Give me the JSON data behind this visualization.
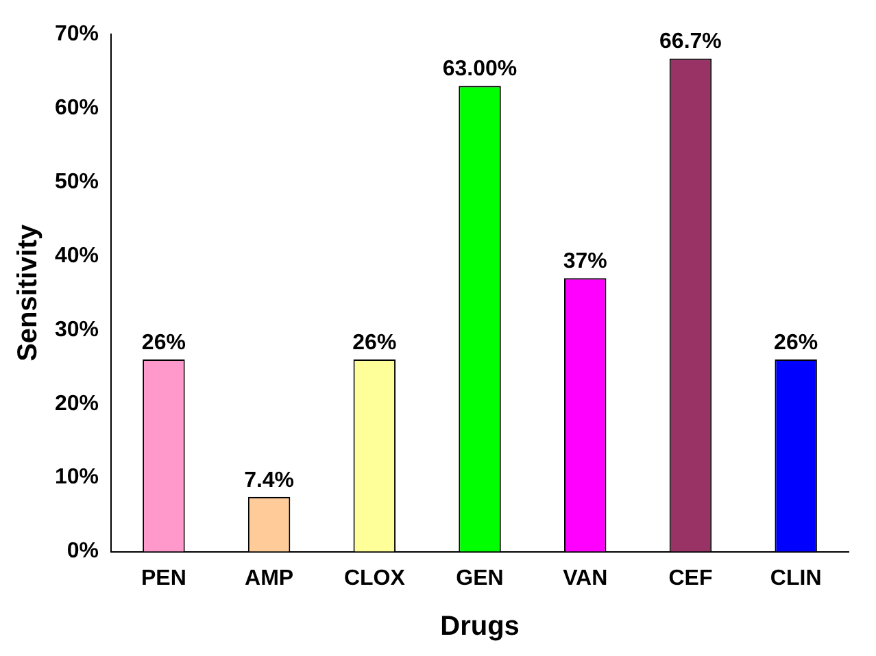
{
  "chart_data": {
    "type": "bar",
    "xlabel": "Drugs",
    "ylabel": "Sensitivity",
    "categories": [
      "PEN",
      "AMP",
      "CLOX",
      "GEN",
      "VAN",
      "CEF",
      "CLIN"
    ],
    "values": [
      26,
      7.4,
      26,
      63,
      37,
      66.7,
      26
    ],
    "colors": [
      "#ff99cc",
      "#ffcc99",
      "#ffff99",
      "#00ff00",
      "#ff00ff",
      "#993366",
      "#0000ff"
    ],
    "value_labels": [
      "26%",
      "7.4%",
      "26%",
      "63.00%",
      "37%",
      "66.7%",
      "26%"
    ],
    "ylim": [
      0,
      70
    ],
    "yticks": [
      {
        "value": 0,
        "label": "0%"
      },
      {
        "value": 10,
        "label": "10%"
      },
      {
        "value": 20,
        "label": "20%"
      },
      {
        "value": 30,
        "label": "30%"
      },
      {
        "value": 40,
        "label": "40%"
      },
      {
        "value": 50,
        "label": "50%"
      },
      {
        "value": 60,
        "label": "60%"
      },
      {
        "value": 70,
        "label": "70%"
      }
    ],
    "grid": false,
    "legend": false
  }
}
